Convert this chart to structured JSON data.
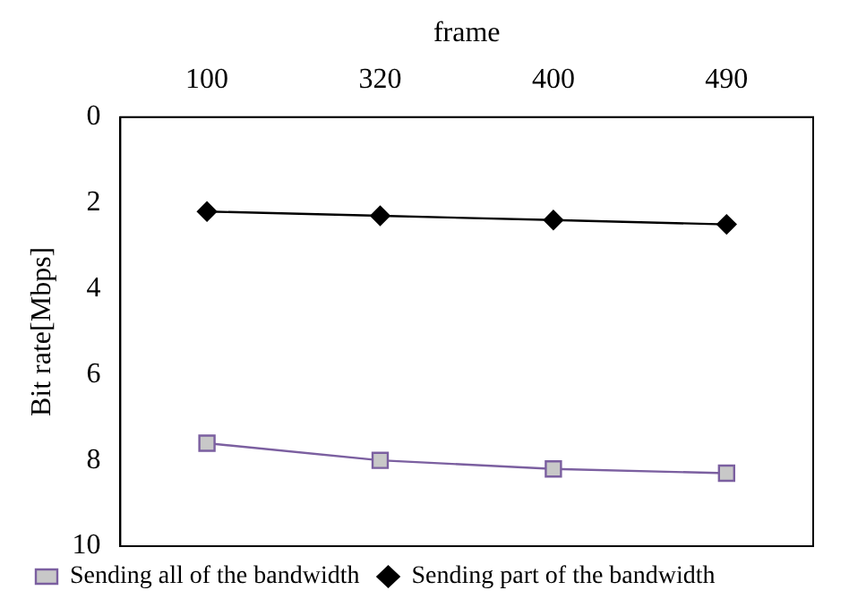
{
  "chart_data": {
    "type": "line",
    "xlabel": "frame",
    "ylabel": "Bit rate[Mbps]",
    "categories": [
      "100",
      "320",
      "400",
      "490"
    ],
    "ylim": [
      10,
      0
    ],
    "yticks": [
      0,
      2,
      4,
      6,
      8,
      10
    ],
    "grid": false,
    "legend": "bottom",
    "series": [
      {
        "name": "Sending all of the bandwidth",
        "color": "#7b5fa0",
        "marker": "square",
        "values": [
          7.6,
          8.0,
          8.2,
          8.3
        ]
      },
      {
        "name": "Sending part of the bandwidth",
        "color": "#000000",
        "marker": "diamond",
        "values": [
          2.2,
          2.3,
          2.4,
          2.5
        ]
      }
    ]
  }
}
